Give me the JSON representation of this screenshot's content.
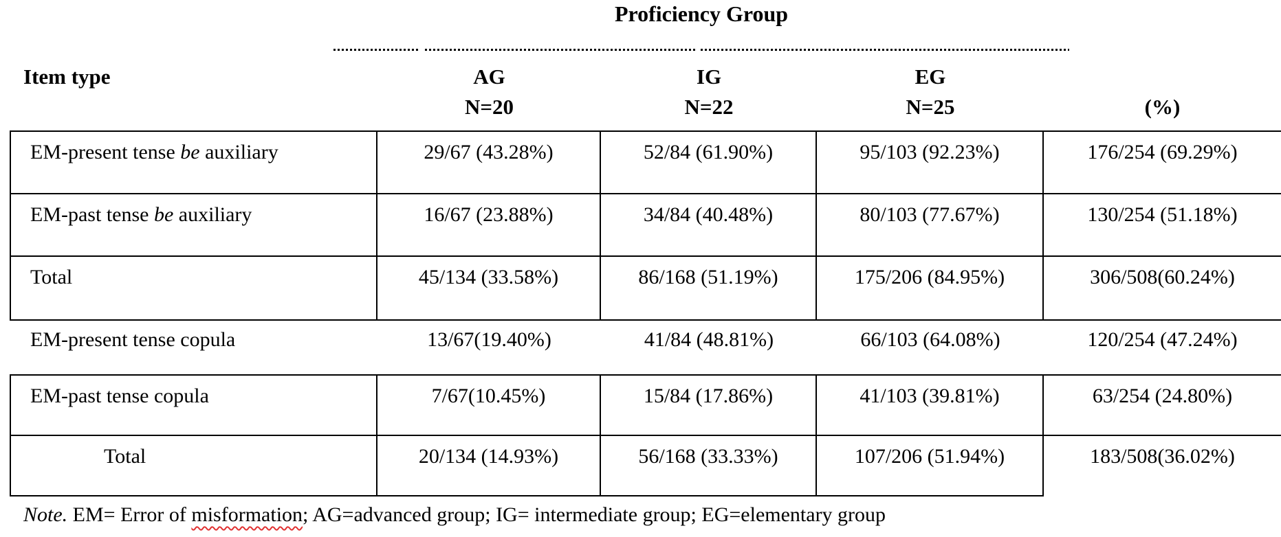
{
  "title": "Proficiency Group",
  "columns": {
    "item_type": "Item type",
    "groups": [
      {
        "label": "AG",
        "n": "N=20"
      },
      {
        "label": "IG",
        "n": "N=22"
      },
      {
        "label": "EG",
        "n": "N=25"
      }
    ],
    "percent": "(%)"
  },
  "rows": [
    {
      "label_pre": "EM-present tense ",
      "label_it": "be",
      "label_post": " auxiliary",
      "ag": "29/67 (43.28%)",
      "ig": "52/84 (61.90%)",
      "eg": "95/103 (92.23%)",
      "pct": "176/254 (69.29%)"
    },
    {
      "label_pre": "EM-past tense ",
      "label_it": "be",
      "label_post": " auxiliary",
      "ag": "16/67 (23.88%)",
      "ig": "34/84 (40.48%)",
      "eg": "80/103 (77.67%)",
      "pct": "130/254 (51.18%)"
    },
    {
      "label_pre": "Total",
      "label_it": "",
      "label_post": "",
      "ag": "45/134 (33.58%)",
      "ig": "86/168 (51.19%)",
      "eg": "175/206 (84.95%)",
      "pct": "306/508(60.24%)"
    },
    {
      "label_pre": "EM-present tense copula",
      "label_it": "",
      "label_post": "",
      "ag": "13/67(19.40%)",
      "ig": "41/84 (48.81%)",
      "eg": "66/103 (64.08%)",
      "pct": "120/254 (47.24%)"
    },
    {
      "label_pre": "EM-past tense copula",
      "label_it": "",
      "label_post": "",
      "ag": "7/67(10.45%)",
      "ig": "15/84 (17.86%)",
      "eg": "41/103 (39.81%)",
      "pct": "63/254 (24.80%)"
    },
    {
      "label_pre": "Total",
      "label_it": "",
      "label_post": "",
      "ag": "20/134 (14.93%)",
      "ig": "56/168 (33.33%)",
      "eg": "107/206 (51.94%)",
      "pct": "183/508(36.02%)"
    }
  ],
  "note": {
    "prefix": "Note.",
    "part1": " EM= Error of ",
    "misspelled": "misformation",
    "part2": "; AG=advanced group; IG= intermediate group; EG=elementary group"
  },
  "colors": {
    "text": "#000000",
    "border": "#000000",
    "background": "#ffffff",
    "squiggle": "#e03131"
  }
}
